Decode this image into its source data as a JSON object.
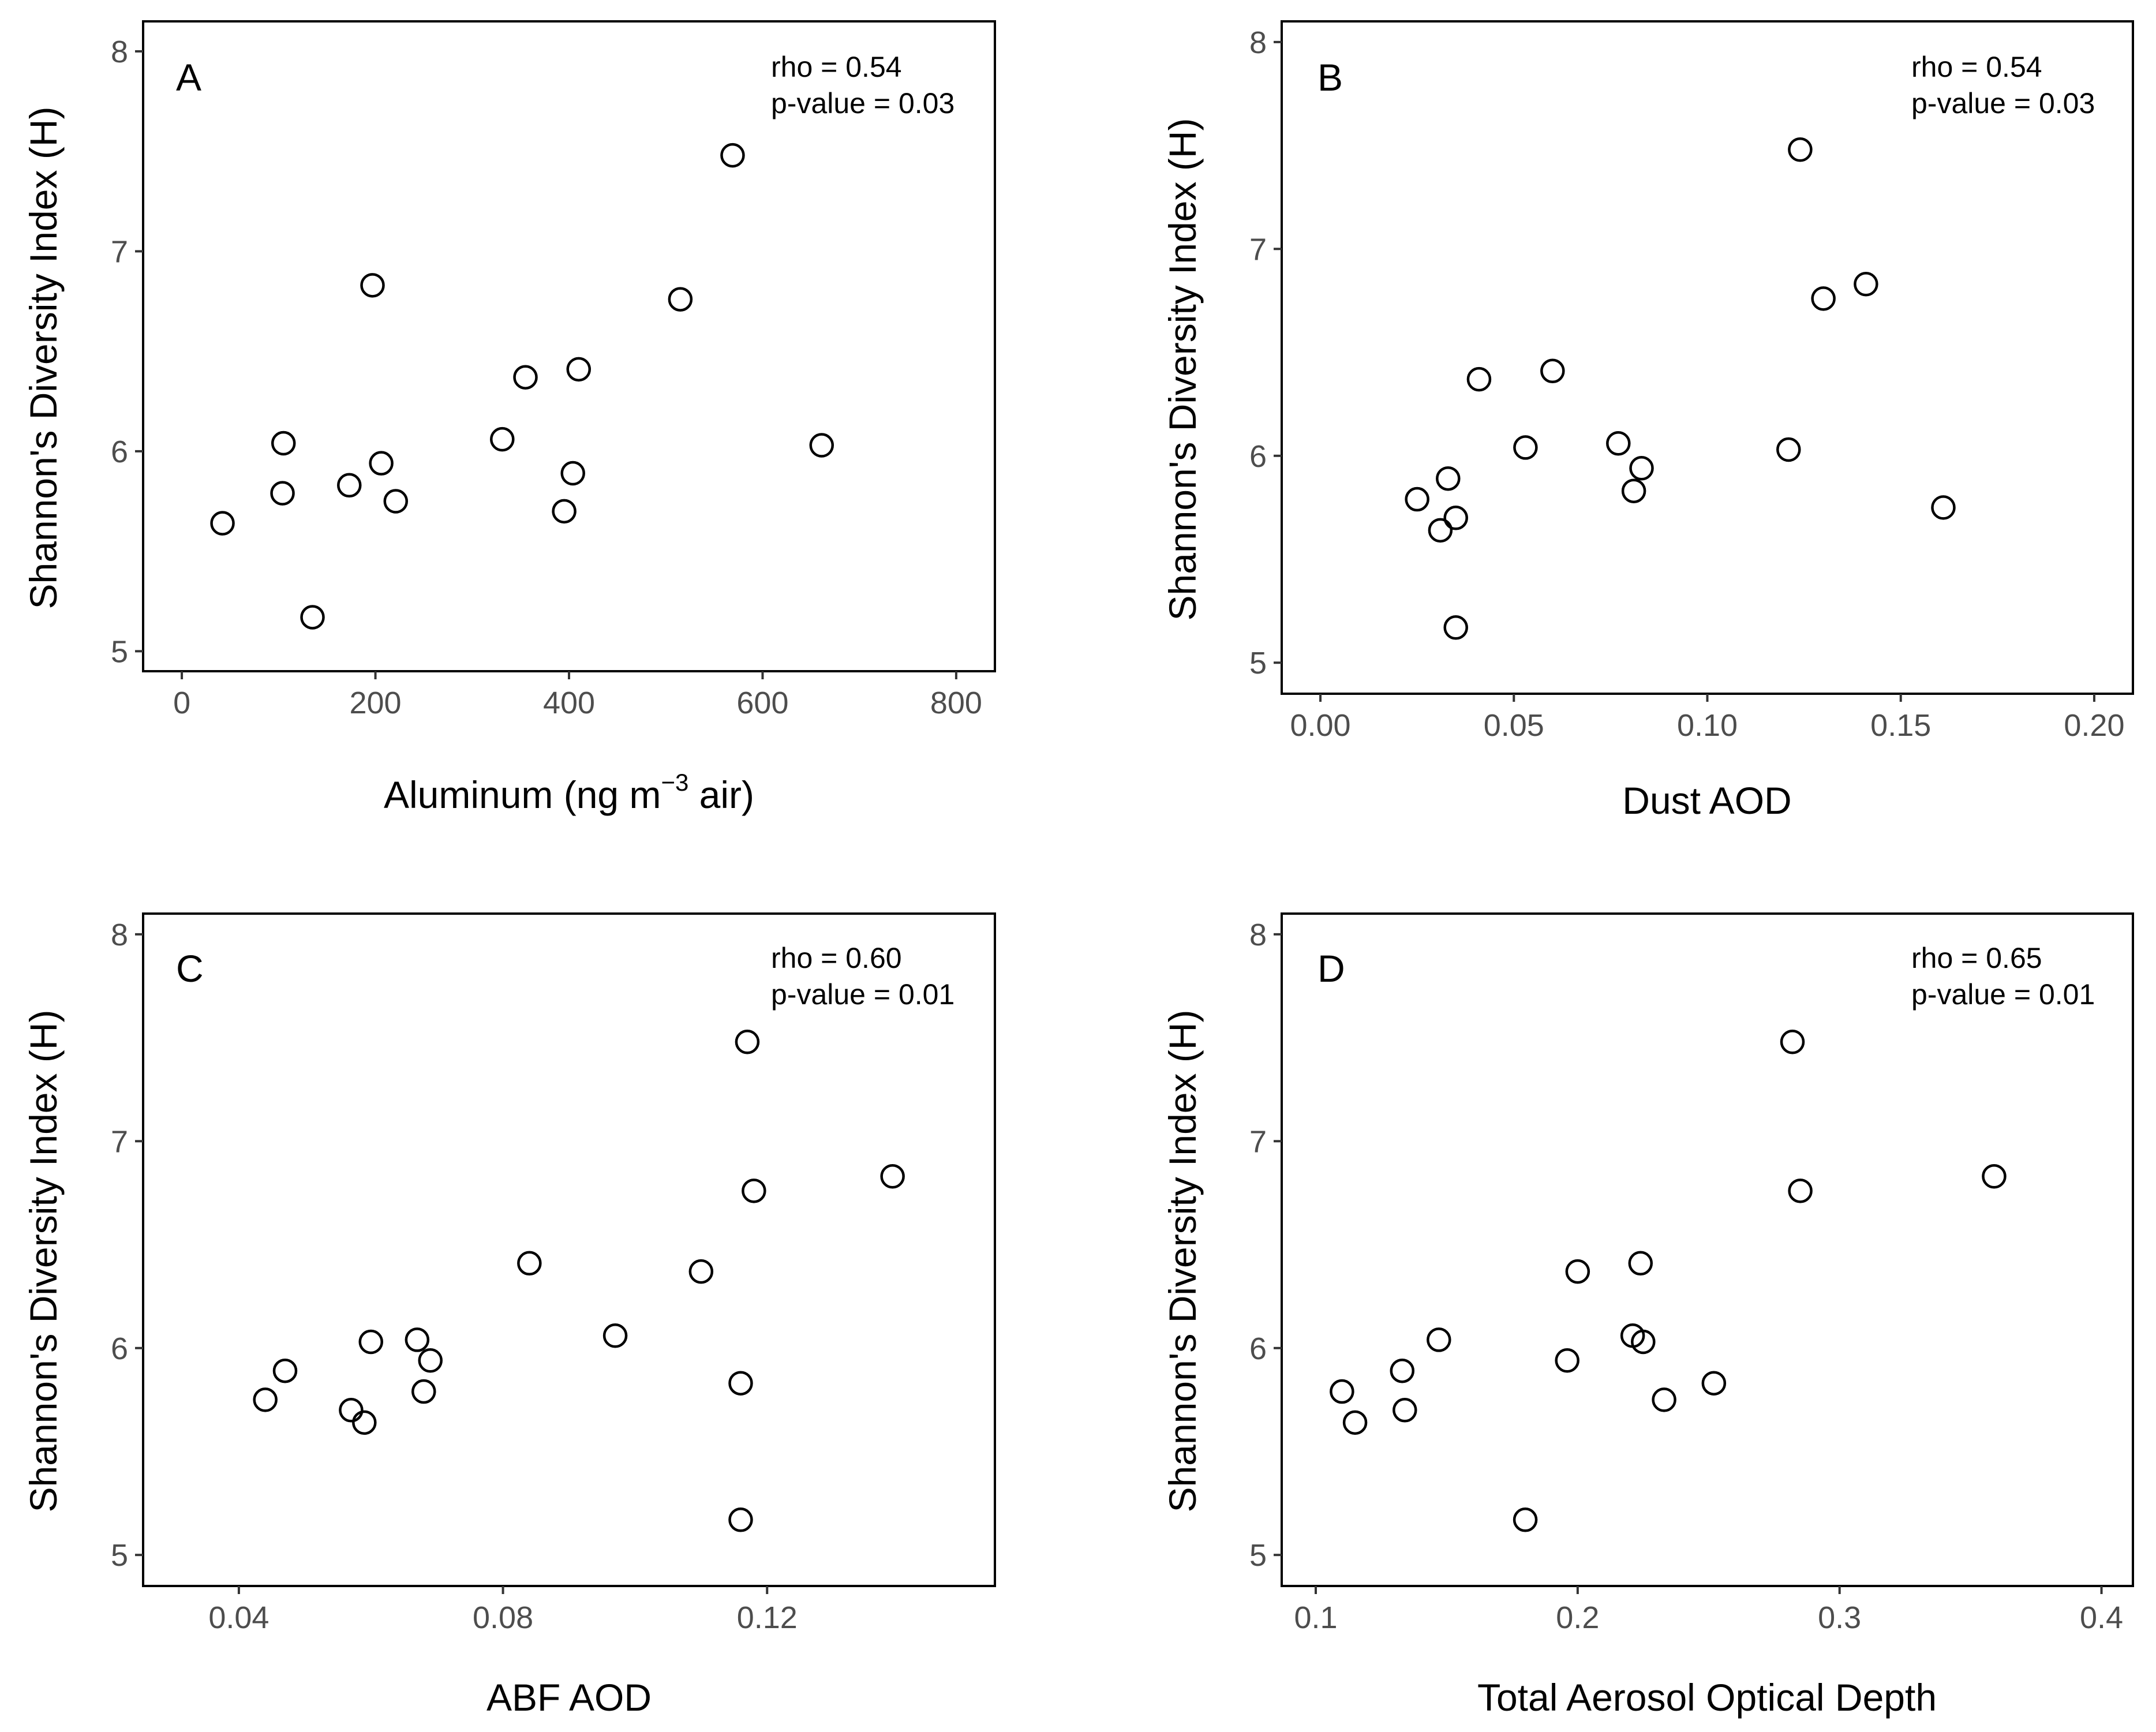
{
  "chart_data": [
    {
      "type": "scatter",
      "panel": "A",
      "stats": {
        "rho": "rho = 0.54",
        "p": "p-value = 0.03"
      },
      "xlabel": "Aluminum  (ng  m",
      "xlabel_sup": "−3",
      "xlabel_suffix": " air)",
      "ylabel": "Shannon's Diversity Index (H)",
      "xlim": [
        -40,
        840
      ],
      "ylim": [
        4.9,
        8.15
      ],
      "xticks": [
        0,
        200,
        400,
        600,
        800
      ],
      "xtick_labels": [
        "0",
        "200",
        "400",
        "600",
        "800"
      ],
      "yticks": [
        5,
        6,
        7,
        8
      ],
      "ytick_labels": [
        "5",
        "6",
        "7",
        "8"
      ],
      "points": [
        {
          "x": 42,
          "y": 5.64
        },
        {
          "x": 104,
          "y": 5.79
        },
        {
          "x": 105,
          "y": 6.04
        },
        {
          "x": 135,
          "y": 5.17
        },
        {
          "x": 173,
          "y": 5.83
        },
        {
          "x": 197,
          "y": 6.83
        },
        {
          "x": 206,
          "y": 5.94
        },
        {
          "x": 221,
          "y": 5.75
        },
        {
          "x": 331,
          "y": 6.06
        },
        {
          "x": 355,
          "y": 6.37
        },
        {
          "x": 395,
          "y": 5.7
        },
        {
          "x": 404,
          "y": 5.89
        },
        {
          "x": 410,
          "y": 6.41
        },
        {
          "x": 515,
          "y": 6.76
        },
        {
          "x": 569,
          "y": 7.48
        },
        {
          "x": 661,
          "y": 6.03
        }
      ]
    },
    {
      "type": "scatter",
      "panel": "B",
      "stats": {
        "rho": "rho = 0.54",
        "p": "p-value = 0.03"
      },
      "xlabel": "Dust AOD",
      "xlabel_sup": "",
      "xlabel_suffix": "",
      "ylabel": "Shannon's Diversity Index (H)",
      "xlim": [
        -0.01,
        0.21
      ],
      "ylim": [
        4.85,
        8.1
      ],
      "xticks": [
        0.0,
        0.05,
        0.1,
        0.15,
        0.2
      ],
      "xtick_labels": [
        "0.00",
        "0.05",
        "0.10",
        "0.15",
        "0.20"
      ],
      "yticks": [
        5,
        6,
        7,
        8
      ],
      "ytick_labels": [
        "5",
        "6",
        "7",
        "8"
      ],
      "points": [
        {
          "x": 0.025,
          "y": 5.79
        },
        {
          "x": 0.031,
          "y": 5.64
        },
        {
          "x": 0.033,
          "y": 5.89
        },
        {
          "x": 0.035,
          "y": 5.7
        },
        {
          "x": 0.035,
          "y": 5.17
        },
        {
          "x": 0.041,
          "y": 6.37
        },
        {
          "x": 0.053,
          "y": 6.04
        },
        {
          "x": 0.06,
          "y": 6.41
        },
        {
          "x": 0.077,
          "y": 6.06
        },
        {
          "x": 0.081,
          "y": 5.83
        },
        {
          "x": 0.083,
          "y": 5.94
        },
        {
          "x": 0.121,
          "y": 6.03
        },
        {
          "x": 0.124,
          "y": 7.48
        },
        {
          "x": 0.13,
          "y": 6.76
        },
        {
          "x": 0.141,
          "y": 6.83
        },
        {
          "x": 0.161,
          "y": 5.75
        }
      ]
    },
    {
      "type": "scatter",
      "panel": "C",
      "stats": {
        "rho": "rho = 0.60",
        "p": "p-value = 0.01"
      },
      "xlabel": "ABF AOD",
      "xlabel_sup": "",
      "xlabel_suffix": "",
      "ylabel": "Shannon's Diversity Index (H)",
      "xlim": [
        0.0255,
        0.1545
      ],
      "ylim": [
        4.85,
        8.1
      ],
      "xticks": [
        0.04,
        0.08,
        0.12
      ],
      "xtick_labels": [
        "0.04",
        "0.08",
        "0.12"
      ],
      "yticks": [
        5,
        6,
        7,
        8
      ],
      "ytick_labels": [
        "5",
        "6",
        "7",
        "8"
      ],
      "points": [
        {
          "x": 0.044,
          "y": 5.75
        },
        {
          "x": 0.047,
          "y": 5.89
        },
        {
          "x": 0.057,
          "y": 5.7
        },
        {
          "x": 0.059,
          "y": 5.64
        },
        {
          "x": 0.06,
          "y": 6.03
        },
        {
          "x": 0.067,
          "y": 6.04
        },
        {
          "x": 0.068,
          "y": 5.79
        },
        {
          "x": 0.069,
          "y": 5.94
        },
        {
          "x": 0.084,
          "y": 6.41
        },
        {
          "x": 0.097,
          "y": 6.06
        },
        {
          "x": 0.11,
          "y": 6.37
        },
        {
          "x": 0.116,
          "y": 5.83
        },
        {
          "x": 0.116,
          "y": 5.17
        },
        {
          "x": 0.117,
          "y": 7.48
        },
        {
          "x": 0.118,
          "y": 6.76
        },
        {
          "x": 0.139,
          "y": 6.83
        }
      ]
    },
    {
      "type": "scatter",
      "panel": "D",
      "stats": {
        "rho": "rho = 0.65",
        "p": "p-value = 0.01"
      },
      "xlabel": "Total Aerosol Optical Depth",
      "xlabel_sup": "",
      "xlabel_suffix": "",
      "ylabel": "Shannon's Diversity Index (H)",
      "xlim": [
        0.087,
        0.412
      ],
      "ylim": [
        4.85,
        8.1
      ],
      "xticks": [
        0.1,
        0.2,
        0.3,
        0.4
      ],
      "xtick_labels": [
        "0.1",
        "0.2",
        "0.3",
        "0.4"
      ],
      "yticks": [
        5,
        6,
        7,
        8
      ],
      "ytick_labels": [
        "5",
        "6",
        "7",
        "8"
      ],
      "points": [
        {
          "x": 0.11,
          "y": 5.79
        },
        {
          "x": 0.115,
          "y": 5.64
        },
        {
          "x": 0.133,
          "y": 5.89
        },
        {
          "x": 0.134,
          "y": 5.7
        },
        {
          "x": 0.147,
          "y": 6.04
        },
        {
          "x": 0.18,
          "y": 5.17
        },
        {
          "x": 0.196,
          "y": 5.94
        },
        {
          "x": 0.2,
          "y": 6.37
        },
        {
          "x": 0.221,
          "y": 6.06
        },
        {
          "x": 0.224,
          "y": 6.41
        },
        {
          "x": 0.225,
          "y": 6.03
        },
        {
          "x": 0.233,
          "y": 5.75
        },
        {
          "x": 0.252,
          "y": 5.83
        },
        {
          "x": 0.282,
          "y": 7.48
        },
        {
          "x": 0.285,
          "y": 6.76
        },
        {
          "x": 0.359,
          "y": 6.83
        }
      ]
    }
  ]
}
